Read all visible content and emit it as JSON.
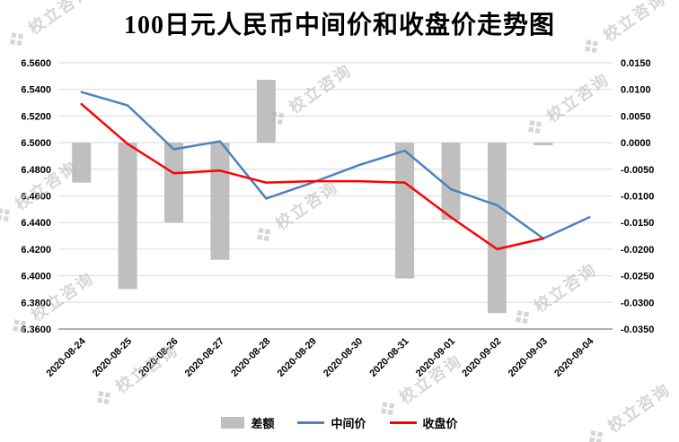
{
  "watermark": {
    "text": "校立咨询",
    "icon": "❖"
  },
  "chart_data": {
    "type": "bar",
    "title": "100日元人民币中间价和收盘价走势图",
    "categories": [
      "2020-08-24",
      "2020-08-25",
      "2020-08-26",
      "2020-08-27",
      "2020-08-28",
      "2020-08-29",
      "2020-08-30",
      "2020-08-31",
      "2020-09-01",
      "2020-09-02",
      "2020-09-03",
      "2020-09-04"
    ],
    "bar_series": {
      "name": "差额",
      "axis": "right",
      "color": "#bfbfbf",
      "values": [
        -0.0075,
        -0.0275,
        -0.015,
        -0.022,
        0.0118,
        null,
        null,
        -0.0255,
        -0.0145,
        -0.032,
        -0.0005,
        null
      ]
    },
    "line_series": [
      {
        "name": "中间价",
        "axis": "left",
        "color": "#4f81bd",
        "values": [
          6.538,
          6.528,
          6.495,
          6.501,
          6.458,
          6.47,
          6.483,
          6.494,
          6.465,
          6.453,
          6.428,
          6.444
        ]
      },
      {
        "name": "收盘价",
        "axis": "left",
        "color": "#ff0000",
        "values": [
          6.529,
          6.499,
          6.477,
          6.479,
          6.47,
          6.471,
          6.471,
          6.47,
          6.444,
          6.42,
          6.428,
          null
        ]
      }
    ],
    "left_axis": {
      "min": 6.36,
      "max": 6.56,
      "step": 0.02,
      "decimals": 4
    },
    "right_axis": {
      "min": -0.035,
      "max": 0.015,
      "step": 0.005,
      "decimals": 4
    },
    "grid": true,
    "legend_position": "bottom"
  }
}
